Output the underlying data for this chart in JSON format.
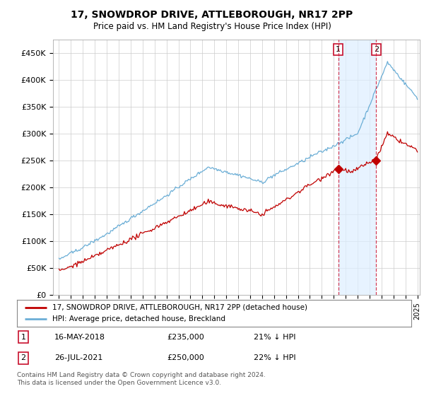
{
  "title": "17, SNOWDROP DRIVE, ATTLEBOROUGH, NR17 2PP",
  "subtitle": "Price paid vs. HM Land Registry's House Price Index (HPI)",
  "ylabel_ticks": [
    "£0",
    "£50K",
    "£100K",
    "£150K",
    "£200K",
    "£250K",
    "£300K",
    "£350K",
    "£400K",
    "£450K"
  ],
  "ytick_values": [
    0,
    50000,
    100000,
    150000,
    200000,
    250000,
    300000,
    350000,
    400000,
    450000
  ],
  "ylim": [
    0,
    475000
  ],
  "xlim_start": 1994.5,
  "xlim_end": 2025.2,
  "hpi_color": "#6baed6",
  "hpi_fill_color": "#ddeeff",
  "property_color": "#c00000",
  "vline_color": "#c8102e",
  "transaction1_x": 2018.37,
  "transaction1_y": 235000,
  "transaction2_x": 2021.56,
  "transaction2_y": 250000,
  "legend_property": "17, SNOWDROP DRIVE, ATTLEBOROUGH, NR17 2PP (detached house)",
  "legend_hpi": "HPI: Average price, detached house, Breckland",
  "annotation1_date": "16-MAY-2018",
  "annotation1_price": "£235,000",
  "annotation1_hpi": "21% ↓ HPI",
  "annotation2_date": "26-JUL-2021",
  "annotation2_price": "£250,000",
  "annotation2_hpi": "22% ↓ HPI",
  "footer": "Contains HM Land Registry data © Crown copyright and database right 2024.\nThis data is licensed under the Open Government Licence v3.0.",
  "background_color": "#ffffff",
  "grid_color": "#cccccc"
}
